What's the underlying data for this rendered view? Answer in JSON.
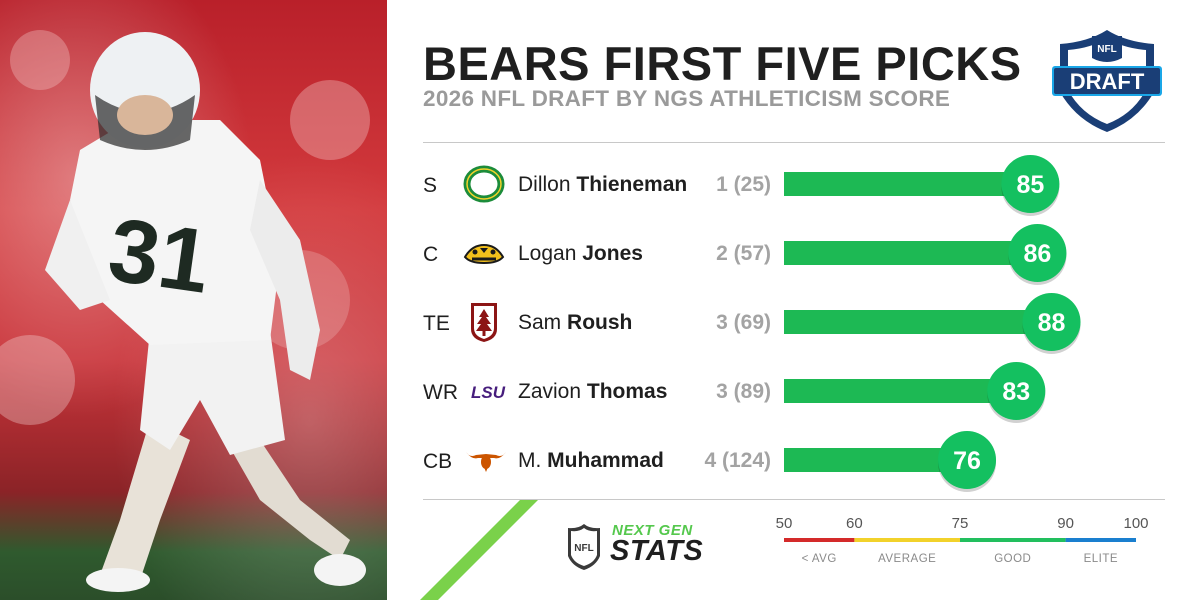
{
  "title": "BEARS FIRST FIVE PICKS",
  "subtitle": "2026 NFL DRAFT BY NGS ATHLETICISM SCORE",
  "draft_logo": {
    "top_text": "NFL",
    "text": "DRAFT"
  },
  "branding": {
    "next_gen": "NEXT GEN",
    "stats": "STATS",
    "shield": "NFL"
  },
  "colors": {
    "bar_green": "#1db954",
    "bubble_green": "#14c060",
    "below_avg": "#d42a2a",
    "average": "#f2d22b",
    "good": "#22bf5e",
    "elite": "#1a7fcf"
  },
  "picks": [
    {
      "position": "S",
      "first": "Dillon",
      "last": "Thieneman",
      "pick": "1 (25)",
      "school_icon": "oregon-logo-icon",
      "score": 85
    },
    {
      "position": "C",
      "first": "Logan",
      "last": "Jones",
      "pick": "2 (57)",
      "school_icon": "iowa-logo-icon",
      "score": 86
    },
    {
      "position": "TE",
      "first": "Sam",
      "last": "Roush",
      "pick": "3 (69)",
      "school_icon": "stanford-logo-icon",
      "score": 88
    },
    {
      "position": "WR",
      "first": "Zavion",
      "last": "Thomas",
      "pick": "3 (89)",
      "school_icon": "lsu-logo-icon",
      "score": 83,
      "school_text": "LSU"
    },
    {
      "position": "CB",
      "first": "M.",
      "last": "Muhammad",
      "pick": "4 (124)",
      "school_icon": "texas-logo-icon",
      "score": 76
    }
  ],
  "chart_data": {
    "type": "bar",
    "orientation": "horizontal",
    "title": "BEARS FIRST FIVE PICKS",
    "subtitle": "2026 NFL DRAFT BY NGS ATHLETICISM SCORE",
    "categories": [
      "Dillon Thieneman",
      "Logan Jones",
      "Sam Roush",
      "Zavion Thomas",
      "M. Muhammad"
    ],
    "values": [
      85,
      86,
      88,
      83,
      76
    ],
    "xlim": [
      50,
      100
    ],
    "x_ticks": [
      50,
      60,
      75,
      90,
      100
    ],
    "scale_bands": [
      {
        "label": "< AVG",
        "from": 50,
        "to": 60
      },
      {
        "label": "AVERAGE",
        "from": 60,
        "to": 75
      },
      {
        "label": "GOOD",
        "from": 75,
        "to": 90
      },
      {
        "label": "ELITE",
        "from": 90,
        "to": 100
      }
    ],
    "grid": false,
    "legend": "bottom"
  }
}
